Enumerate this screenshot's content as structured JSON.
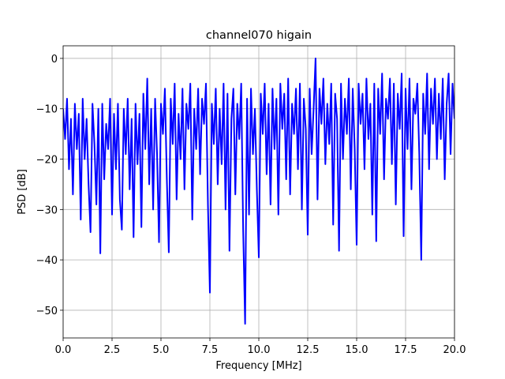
{
  "chart_data": {
    "type": "line",
    "title": "channel070 higain",
    "x_label": "Frequency [MHz]",
    "y_label": "PSD [dB]",
    "color": "#0000ff",
    "grid": true,
    "xlim": [
      0,
      20
    ],
    "ylim": [
      -55.5,
      2.5
    ],
    "xticks": [
      {
        "value": 0,
        "label": "0.0"
      },
      2.5,
      {
        "value": 5,
        "label": "5.0"
      },
      7.5,
      {
        "value": 10,
        "label": "10.0"
      },
      12.5,
      {
        "value": 15,
        "label": "15.0"
      },
      17.5,
      {
        "value": 20,
        "label": "20.0"
      }
    ],
    "yticks": [
      {
        "value": -50,
        "label": "−50"
      },
      {
        "value": -40,
        "label": "−40"
      },
      {
        "value": -30,
        "label": "−30"
      },
      {
        "value": -20,
        "label": "−20"
      },
      {
        "value": -10,
        "label": "−10"
      },
      0
    ],
    "x": [
      0,
      0.1,
      0.2,
      0.3,
      0.4,
      0.5,
      0.6,
      0.7,
      0.8,
      0.9,
      1,
      1.1,
      1.2,
      1.3,
      1.4,
      1.5,
      1.6,
      1.7,
      1.8,
      1.9,
      2,
      2.1,
      2.2,
      2.3,
      2.4,
      2.5,
      2.6,
      2.7,
      2.8,
      2.9,
      3,
      3.1,
      3.2,
      3.3,
      3.4,
      3.5,
      3.6,
      3.7,
      3.8,
      3.9,
      4,
      4.1,
      4.2,
      4.3,
      4.4,
      4.5,
      4.6,
      4.7,
      4.8,
      4.9,
      5,
      5.1,
      5.2,
      5.3,
      5.4,
      5.5,
      5.6,
      5.7,
      5.8,
      5.9,
      6,
      6.1,
      6.2,
      6.3,
      6.4,
      6.5,
      6.6,
      6.7,
      6.8,
      6.9,
      7,
      7.1,
      7.2,
      7.3,
      7.4,
      7.5,
      7.6,
      7.7,
      7.8,
      7.9,
      8,
      8.1,
      8.2,
      8.3,
      8.4,
      8.5,
      8.6,
      8.7,
      8.8,
      8.9,
      9,
      9.1,
      9.2,
      9.3,
      9.4,
      9.5,
      9.6,
      9.7,
      9.8,
      9.9,
      10,
      10.1,
      10.2,
      10.3,
      10.4,
      10.5,
      10.6,
      10.7,
      10.8,
      10.9,
      11,
      11.1,
      11.2,
      11.3,
      11.4,
      11.5,
      11.6,
      11.7,
      11.8,
      11.9,
      12,
      12.1,
      12.2,
      12.3,
      12.4,
      12.5,
      12.6,
      12.7,
      12.8,
      12.9,
      13,
      13.1,
      13.2,
      13.3,
      13.4,
      13.5,
      13.6,
      13.7,
      13.8,
      13.9,
      14,
      14.1,
      14.2,
      14.3,
      14.4,
      14.5,
      14.6,
      14.7,
      14.8,
      14.9,
      15,
      15.1,
      15.2,
      15.3,
      15.4,
      15.5,
      15.6,
      15.7,
      15.8,
      15.9,
      16,
      16.1,
      16.2,
      16.3,
      16.4,
      16.5,
      16.6,
      16.7,
      16.8,
      16.9,
      17,
      17.1,
      17.2,
      17.3,
      17.4,
      17.5,
      17.6,
      17.7,
      17.8,
      17.9,
      18,
      18.1,
      18.2,
      18.3,
      18.4,
      18.5,
      18.6,
      18.7,
      18.8,
      18.9,
      19,
      19.1,
      19.2,
      19.3,
      19.4,
      19.5,
      19.6,
      19.7,
      19.8,
      19.9,
      20
    ],
    "values": [
      -10,
      -16,
      -8,
      -22,
      -12,
      -27,
      -9,
      -18,
      -11,
      -32,
      -8,
      -20,
      -12,
      -25,
      -34.5,
      -9,
      -17,
      -29,
      -10,
      -38.7,
      -9,
      -24,
      -13,
      -18,
      -8,
      -31,
      -11,
      -22,
      -9,
      -28,
      -34,
      -10,
      -19,
      -8,
      -26,
      -12,
      -35.5,
      -9,
      -21,
      -11,
      -33.5,
      -7,
      -18,
      -4,
      -25,
      -10,
      -30,
      -8,
      -19,
      -36.5,
      -9,
      -15,
      -6,
      -24,
      -38.5,
      -8,
      -17,
      -5,
      -28,
      -11,
      -20,
      -6,
      -26,
      -9,
      -14,
      -5,
      -32,
      -10,
      -18,
      -6,
      -23,
      -8,
      -13,
      -5,
      -29,
      -46.5,
      -9,
      -17,
      -6,
      -25,
      -10,
      -21,
      -5,
      -30,
      -7,
      -38.2,
      -12,
      -6,
      -27,
      -9,
      -16,
      -5,
      -34,
      -52.7,
      -8,
      -31,
      -6,
      -19,
      -10,
      -26,
      -39.5,
      -7,
      -15,
      -5,
      -23,
      -9,
      -29,
      -6,
      -18,
      -8,
      -31,
      -5,
      -14,
      -7,
      -24,
      -4,
      -27,
      -9,
      -15,
      -6,
      -22,
      -5,
      -30,
      -8,
      -14,
      -35,
      -6,
      -19,
      -10,
      0,
      -28,
      -6,
      -13,
      -4,
      -21,
      -9,
      -17,
      -5,
      -33,
      -7,
      -12,
      -38.2,
      -5,
      -20,
      -8,
      -15,
      -4,
      -26,
      -6,
      -18,
      -37,
      -5,
      -13,
      -7,
      -22,
      -4,
      -16,
      -9,
      -31,
      -5,
      -36.3,
      -6,
      -15,
      -3,
      -24,
      -8,
      -12,
      -4,
      -21,
      -5,
      -29,
      -7,
      -14,
      -3,
      -35.3,
      -6,
      -18,
      -4,
      -26,
      -8,
      -11,
      -5,
      -19,
      -40,
      -7,
      -15,
      -3,
      -22,
      -6,
      -13,
      -4,
      -20,
      -7,
      -16,
      -4,
      -24,
      -9,
      -3,
      -19,
      -5,
      -12
    ]
  }
}
